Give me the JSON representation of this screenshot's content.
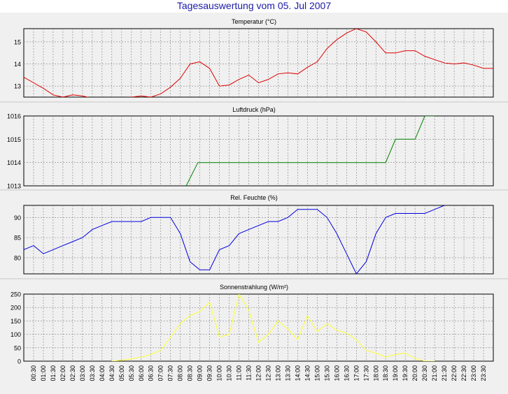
{
  "page_title": "Tagesauswertung vom 05. Jul 2007",
  "colors": {
    "background": "#f0f0f0",
    "title": "#1a1aa8",
    "temperature": "#e00000",
    "pressure": "#008000",
    "humidity": "#0000e0",
    "radiation": "#ffff33"
  },
  "time_labels": [
    "00:30",
    "01:00",
    "01:30",
    "02:00",
    "02:30",
    "03:00",
    "03:30",
    "04:00",
    "04:30",
    "05:00",
    "05:30",
    "06:00",
    "06:30",
    "07:00",
    "07:30",
    "08:00",
    "08:30",
    "09:00",
    "09:30",
    "10:00",
    "10:30",
    "11:00",
    "11:30",
    "12:00",
    "12:30",
    "13:00",
    "13:30",
    "14:00",
    "14:30",
    "15:00",
    "15:30",
    "16:00",
    "16:30",
    "17:00",
    "17:30",
    "18:00",
    "18:30",
    "19:00",
    "19:30",
    "20:00",
    "20:30",
    "21:00",
    "21:30",
    "22:00",
    "22:30",
    "23:00",
    "23:30"
  ],
  "chart_data": [
    {
      "type": "line",
      "title": "Temperatur (°C)",
      "xlabel": "",
      "ylabel": "",
      "ylim": [
        12.5,
        15.6
      ],
      "yticks": [
        13,
        14,
        15
      ],
      "grid": true,
      "series": [
        {
          "color": "#e00000",
          "x": [
            0,
            0.5,
            1,
            1.5,
            2,
            2.5,
            3,
            3.5,
            4,
            4.5,
            5,
            5.5,
            6,
            6.5,
            7,
            7.5,
            8,
            8.5,
            9,
            9.5,
            10,
            10.5,
            11,
            11.5,
            12,
            12.5,
            13,
            13.5,
            14,
            14.5,
            15,
            15.5,
            16,
            16.5,
            17,
            17.5,
            18,
            18.5,
            19,
            19.5,
            20,
            20.5,
            21,
            21.5,
            22,
            22.5,
            23,
            23.5,
            24
          ],
          "values": [
            13.4,
            13.15,
            12.9,
            12.6,
            12.5,
            12.6,
            12.55,
            12.45,
            12.4,
            12.45,
            12.45,
            12.5,
            12.55,
            12.5,
            12.65,
            12.95,
            13.35,
            14.0,
            14.1,
            13.8,
            13.0,
            13.05,
            13.3,
            13.5,
            13.15,
            13.3,
            13.55,
            13.6,
            13.55,
            13.85,
            14.1,
            14.7,
            15.1,
            15.4,
            15.6,
            15.45,
            15.0,
            14.5,
            14.5,
            14.6,
            14.6,
            14.35,
            14.2,
            14.05,
            14.0,
            14.05,
            13.95,
            13.8,
            13.8
          ]
        }
      ]
    },
    {
      "type": "line",
      "title": "Luftdruck (hPa)",
      "xlabel": "",
      "ylabel": "",
      "ylim": [
        1013,
        1016
      ],
      "yticks": [
        1013,
        1014,
        1015,
        1016
      ],
      "grid": true,
      "series": [
        {
          "color": "#008000",
          "x": [
            8.3,
            8.9,
            18.5,
            19.0,
            20.0,
            20.5,
            21.0
          ],
          "values": [
            1013,
            1014,
            1014,
            1015,
            1015,
            1016,
            1016
          ]
        }
      ]
    },
    {
      "type": "line",
      "title": "Rel. Feuchte (%)",
      "xlabel": "",
      "ylabel": "",
      "ylim": [
        76,
        93
      ],
      "yticks": [
        80,
        85,
        90
      ],
      "grid": true,
      "series": [
        {
          "color": "#0000e0",
          "x": [
            0,
            0.5,
            1,
            1.5,
            2,
            2.5,
            3,
            3.5,
            4,
            4.5,
            5,
            5.5,
            6,
            6.5,
            7,
            7.5,
            8,
            8.5,
            9,
            9.5,
            10,
            10.5,
            11,
            11.5,
            12,
            12.5,
            13,
            13.5,
            14,
            14.5,
            15,
            15.5,
            16,
            16.5,
            17,
            17.5,
            18,
            18.5,
            19,
            19.5,
            20,
            20.5,
            21,
            21.5
          ],
          "values": [
            82,
            83,
            81,
            82,
            83,
            84,
            85,
            87,
            88,
            89,
            89,
            89,
            89,
            90,
            90,
            90,
            86,
            79,
            77,
            77,
            82,
            83,
            86,
            87,
            88,
            89,
            89,
            90,
            92,
            92,
            92,
            90,
            86,
            81,
            76,
            79,
            86,
            90,
            91,
            91,
            91,
            91,
            92,
            93
          ]
        }
      ]
    },
    {
      "type": "line",
      "title": "Sonnenstrahlung (W/m²)",
      "xlabel": "",
      "ylabel": "",
      "ylim": [
        0,
        250
      ],
      "yticks": [
        0,
        50,
        100,
        150,
        200,
        250
      ],
      "grid": true,
      "series": [
        {
          "color": "#ffff33",
          "x": [
            4.5,
            5,
            5.5,
            6,
            6.5,
            7,
            7.5,
            8,
            8.5,
            9,
            9.5,
            10,
            10.5,
            11,
            11.5,
            12,
            12.5,
            13,
            13.5,
            14,
            14.5,
            15,
            15.5,
            16,
            16.5,
            17,
            17.5,
            18,
            18.5,
            19,
            19.5,
            20,
            20.5,
            21
          ],
          "values": [
            0,
            3,
            8,
            15,
            25,
            40,
            90,
            140,
            170,
            185,
            220,
            90,
            100,
            250,
            190,
            70,
            100,
            150,
            120,
            80,
            170,
            110,
            140,
            115,
            105,
            80,
            40,
            30,
            15,
            25,
            30,
            10,
            0,
            0
          ]
        }
      ]
    }
  ]
}
